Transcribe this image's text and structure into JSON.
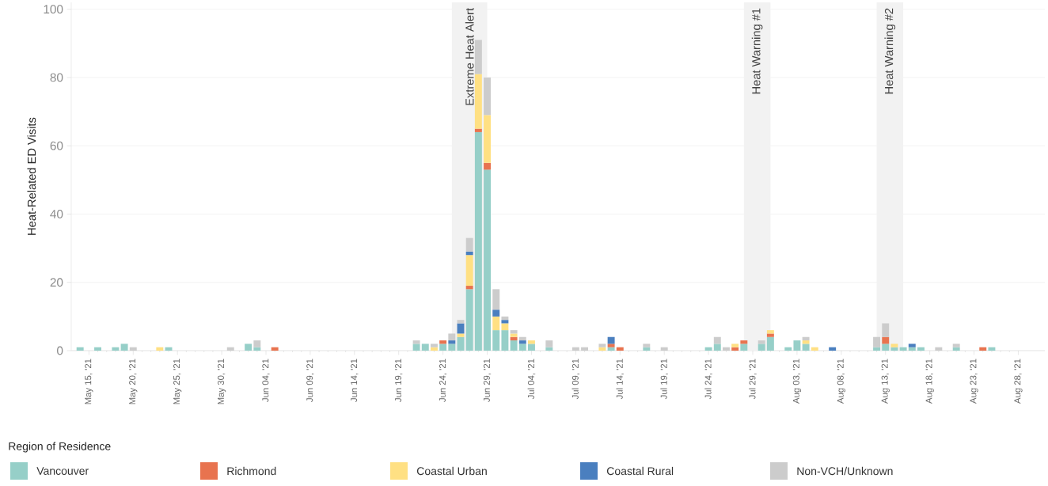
{
  "chart_data": {
    "type": "bar",
    "stacked": true,
    "ylabel": "Heat-Related ED Visits",
    "legend_title": "Region of Residence",
    "legend": "bottom",
    "grid": "y",
    "xlim": [
      "2021-05-13",
      "2021-08-31"
    ],
    "ylim": [
      0,
      102
    ],
    "yticks": [
      0,
      20,
      40,
      60,
      80,
      100
    ],
    "xticks": [
      {
        "value": "2021-05-15",
        "label": "May 15, '21"
      },
      {
        "value": "2021-05-20",
        "label": "May 20, '21"
      },
      {
        "value": "2021-05-25",
        "label": "May 25, '21"
      },
      {
        "value": "2021-05-30",
        "label": "May 30, '21"
      },
      {
        "value": "2021-06-04",
        "label": "Jun 04, '21"
      },
      {
        "value": "2021-06-09",
        "label": "Jun 09, '21"
      },
      {
        "value": "2021-06-14",
        "label": "Jun 14, '21"
      },
      {
        "value": "2021-06-19",
        "label": "Jun 19, '21"
      },
      {
        "value": "2021-06-24",
        "label": "Jun 24, '21"
      },
      {
        "value": "2021-06-29",
        "label": "Jun 29, '21"
      },
      {
        "value": "2021-07-04",
        "label": "Jul 04, '21"
      },
      {
        "value": "2021-07-09",
        "label": "Jul 09, '21"
      },
      {
        "value": "2021-07-14",
        "label": "Jul 14, '21"
      },
      {
        "value": "2021-07-19",
        "label": "Jul 19, '21"
      },
      {
        "value": "2021-07-24",
        "label": "Jul 24, '21"
      },
      {
        "value": "2021-07-29",
        "label": "Jul 29, '21"
      },
      {
        "value": "2021-08-03",
        "label": "Aug 03, '21"
      },
      {
        "value": "2021-08-08",
        "label": "Aug 08, '21"
      },
      {
        "value": "2021-08-13",
        "label": "Aug 13, '21"
      },
      {
        "value": "2021-08-18",
        "label": "Aug 18, '21"
      },
      {
        "value": "2021-08-23",
        "label": "Aug 23, '21"
      },
      {
        "value": "2021-08-28",
        "label": "Aug 28, '21"
      }
    ],
    "bands": [
      {
        "axis": "x",
        "from": "2021-06-25",
        "to": "2021-06-29",
        "label": "Extreme Heat Alert",
        "color": "#f2f2f2"
      },
      {
        "axis": "x",
        "from": "2021-07-28",
        "to": "2021-07-31",
        "label": "Heat Warning #1",
        "color": "#f2f2f2"
      },
      {
        "axis": "x",
        "from": "2021-08-12",
        "to": "2021-08-15",
        "label": "Heat Warning #2",
        "color": "#f2f2f2"
      }
    ],
    "x": [
      "2021-05-14",
      "2021-05-16",
      "2021-05-18",
      "2021-05-19",
      "2021-05-20",
      "2021-05-23",
      "2021-05-24",
      "2021-05-31",
      "2021-06-02",
      "2021-06-03",
      "2021-06-05",
      "2021-06-21",
      "2021-06-22",
      "2021-06-23",
      "2021-06-24",
      "2021-06-25",
      "2021-06-26",
      "2021-06-27",
      "2021-06-28",
      "2021-06-29",
      "2021-06-30",
      "2021-07-01",
      "2021-07-02",
      "2021-07-03",
      "2021-07-04",
      "2021-07-06",
      "2021-07-09",
      "2021-07-10",
      "2021-07-12",
      "2021-07-13",
      "2021-07-14",
      "2021-07-17",
      "2021-07-19",
      "2021-07-24",
      "2021-07-25",
      "2021-07-26",
      "2021-07-27",
      "2021-07-28",
      "2021-07-30",
      "2021-07-31",
      "2021-08-02",
      "2021-08-03",
      "2021-08-04",
      "2021-08-05",
      "2021-08-07",
      "2021-08-12",
      "2021-08-13",
      "2021-08-14",
      "2021-08-15",
      "2021-08-16",
      "2021-08-17",
      "2021-08-19",
      "2021-08-21",
      "2021-08-24",
      "2021-08-25"
    ],
    "series": [
      {
        "name": "Vancouver",
        "color": "#96cfc8",
        "values": [
          1,
          1,
          1,
          2,
          null,
          null,
          1,
          null,
          2,
          1,
          null,
          2,
          2,
          null,
          2,
          2,
          4,
          18,
          64,
          53,
          6,
          6,
          3,
          2,
          2,
          1,
          null,
          null,
          null,
          1,
          null,
          1,
          null,
          1,
          2,
          null,
          null,
          2,
          2,
          4,
          1,
          3,
          2,
          null,
          null,
          1,
          2,
          1,
          1,
          1,
          1,
          null,
          1,
          null,
          1
        ]
      },
      {
        "name": "Richmond",
        "color": "#e8734f",
        "values": [
          null,
          null,
          null,
          null,
          null,
          null,
          null,
          null,
          null,
          null,
          1,
          null,
          null,
          null,
          1,
          null,
          null,
          1,
          1,
          2,
          null,
          null,
          1,
          null,
          null,
          null,
          null,
          null,
          null,
          1,
          1,
          null,
          null,
          null,
          null,
          null,
          1,
          1,
          null,
          1,
          null,
          null,
          null,
          null,
          null,
          null,
          2,
          null,
          null,
          null,
          null,
          null,
          null,
          1,
          null
        ]
      },
      {
        "name": "Coastal Urban",
        "color": "#ffe083",
        "values": [
          null,
          null,
          null,
          null,
          null,
          1,
          null,
          null,
          null,
          null,
          null,
          null,
          null,
          1,
          null,
          null,
          1,
          9,
          16,
          14,
          4,
          2,
          1,
          null,
          1,
          null,
          null,
          null,
          1,
          null,
          null,
          null,
          null,
          null,
          null,
          null,
          1,
          null,
          null,
          1,
          null,
          null,
          1,
          1,
          null,
          null,
          null,
          1,
          null,
          null,
          null,
          null,
          null,
          null,
          null
        ]
      },
      {
        "name": "Coastal Rural",
        "color": "#4a7fbf",
        "values": [
          null,
          null,
          null,
          null,
          null,
          null,
          null,
          null,
          null,
          null,
          null,
          null,
          null,
          null,
          null,
          1,
          3,
          1,
          null,
          null,
          2,
          1,
          null,
          1,
          null,
          null,
          null,
          null,
          null,
          2,
          null,
          null,
          null,
          null,
          null,
          null,
          null,
          null,
          null,
          null,
          null,
          null,
          null,
          null,
          1,
          null,
          null,
          null,
          null,
          1,
          null,
          null,
          null,
          null,
          null
        ]
      },
      {
        "name": "Non-VCH/Unknown",
        "color": "#cccccc",
        "values": [
          null,
          null,
          null,
          null,
          1,
          null,
          null,
          1,
          null,
          2,
          null,
          1,
          null,
          1,
          null,
          2,
          1,
          4,
          10,
          11,
          6,
          1,
          1,
          1,
          null,
          2,
          1,
          1,
          1,
          null,
          null,
          1,
          1,
          null,
          2,
          1,
          null,
          null,
          1,
          null,
          null,
          null,
          1,
          null,
          null,
          3,
          4,
          null,
          null,
          null,
          null,
          1,
          1,
          null,
          null
        ]
      }
    ]
  }
}
